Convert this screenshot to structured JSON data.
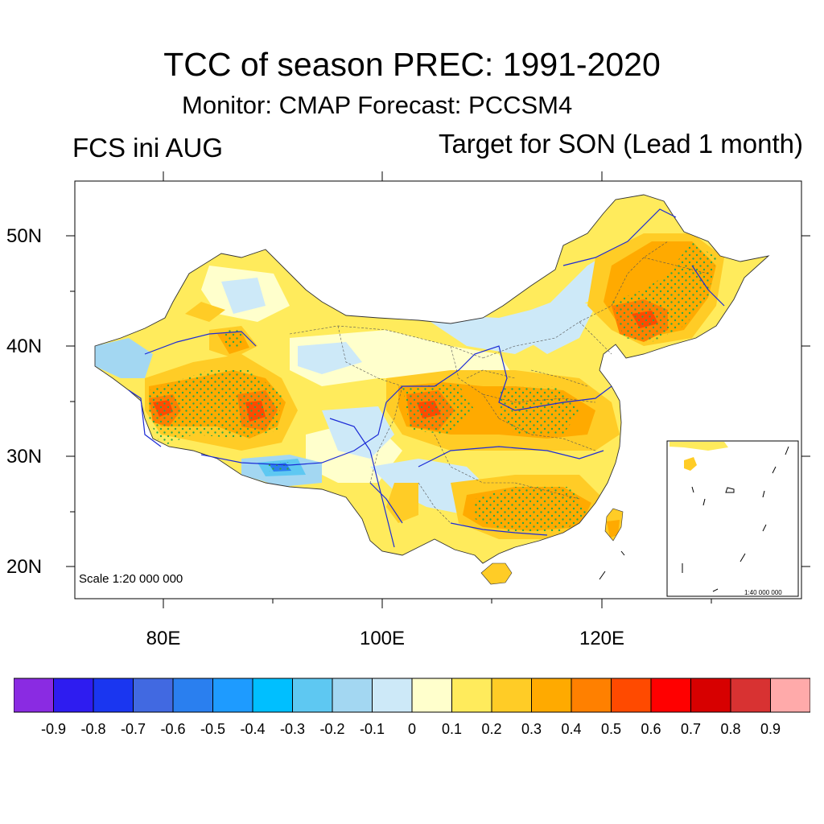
{
  "title": "TCC of season PREC: 1991-2020",
  "subtitle": "Monitor: CMAP   Forecast: PCCSM4",
  "left_subtitle": "FCS ini AUG",
  "right_subtitle": "Target for SON (Lead 1 month)",
  "map": {
    "region": "China",
    "lat_labels": [
      "50N",
      "40N",
      "30N",
      "20N"
    ],
    "lon_labels": [
      "80E",
      "100E",
      "120E"
    ],
    "scale_label": "Scale 1:20 000 000",
    "inset_scale_label": "1:40 000 000",
    "stipple_color": "#2aa84a",
    "boundary_color": "#000000",
    "river_color": "#1c2bd6"
  },
  "colorbar": {
    "colors": [
      "#8a2be2",
      "#2e1cf0",
      "#1a36f0",
      "#4169e1",
      "#2a7fef",
      "#1e9bff",
      "#00bfff",
      "#5ec8f2",
      "#a3d7f2",
      "#cde9f8",
      "#ffffcc",
      "#ffeb5c",
      "#ffcc26",
      "#ffaa00",
      "#ff8000",
      "#ff4a00",
      "#ff0000",
      "#d70000",
      "#d83232",
      "#ffaaaa"
    ],
    "labels": [
      "-0.9",
      "-0.8",
      "-0.7",
      "-0.6",
      "-0.5",
      "-0.4",
      "-0.3",
      "-0.2",
      "-0.1",
      "0",
      "0.1",
      "0.2",
      "0.3",
      "0.4",
      "0.5",
      "0.6",
      "0.7",
      "0.8",
      "0.9"
    ]
  }
}
